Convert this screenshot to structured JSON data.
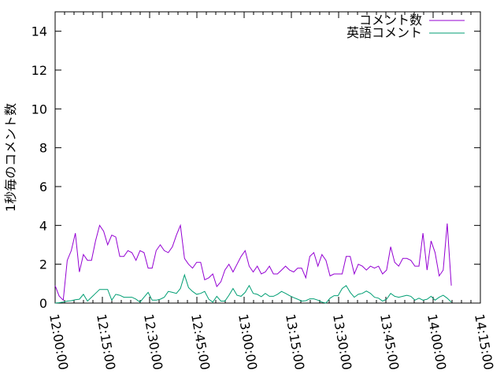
{
  "chart_data": {
    "type": "line",
    "title": "",
    "xlabel": "",
    "ylabel": "1秒毎のコメント数",
    "xlim": [
      "12:00:00",
      "14:15:00"
    ],
    "ylim": [
      0,
      15
    ],
    "x_ticks": [
      "12:00:00",
      "12:15:00",
      "12:30:00",
      "12:45:00",
      "13:00:00",
      "13:15:00",
      "13:30:00",
      "13:45:00",
      "14:00:00",
      "14:15:00"
    ],
    "y_ticks": [
      "0",
      "2",
      "4",
      "6",
      "8",
      "10",
      "12",
      "14"
    ],
    "grid": false,
    "legend_position": "top-right",
    "x_start": "12:00:00",
    "x_step_seconds": 77,
    "series": [
      {
        "name": "コメント数",
        "color": "#9400d3",
        "values": [
          0.9,
          0.36,
          0.15,
          2.2,
          2.7,
          3.6,
          1.6,
          2.5,
          2.2,
          2.2,
          3.2,
          4.0,
          3.7,
          3.0,
          3.5,
          3.4,
          2.4,
          2.4,
          2.7,
          2.6,
          2.2,
          2.7,
          2.6,
          1.8,
          1.8,
          2.7,
          3.0,
          2.7,
          2.6,
          2.9,
          3.5,
          4.0,
          2.3,
          2.0,
          1.8,
          2.1,
          2.1,
          1.2,
          1.3,
          1.5,
          0.85,
          1.1,
          1.7,
          2.0,
          1.6,
          2.0,
          2.4,
          2.7,
          1.9,
          1.6,
          1.9,
          1.5,
          1.6,
          1.9,
          1.5,
          1.5,
          1.7,
          1.9,
          1.7,
          1.6,
          1.8,
          1.8,
          1.3,
          2.4,
          2.6,
          1.9,
          2.5,
          2.2,
          1.4,
          1.5,
          1.5,
          1.5,
          2.4,
          2.4,
          1.5,
          2.0,
          1.9,
          1.7,
          1.9,
          1.8,
          1.9,
          1.5,
          1.7,
          2.9,
          2.1,
          1.9,
          2.3,
          2.3,
          2.2,
          1.9,
          1.9,
          3.6,
          1.7,
          3.2,
          2.6,
          1.4,
          1.7,
          4.1,
          0.9
        ]
      },
      {
        "name": "英語コメント",
        "color": "#009e73",
        "values": [
          0,
          0.02,
          0.05,
          0.1,
          0.12,
          0.17,
          0.2,
          0.45,
          0.1,
          0.3,
          0.5,
          0.7,
          0.7,
          0.7,
          0.15,
          0.45,
          0.4,
          0.3,
          0.3,
          0.3,
          0.2,
          0.05,
          0.3,
          0.55,
          0.15,
          0.15,
          0.2,
          0.3,
          0.6,
          0.55,
          0.5,
          0.75,
          1.45,
          0.8,
          0.6,
          0.45,
          0.5,
          0.6,
          0.2,
          0.05,
          0.35,
          0.1,
          0.1,
          0.4,
          0.75,
          0.4,
          0.35,
          0.55,
          0.9,
          0.5,
          0.45,
          0.33,
          0.5,
          0.35,
          0.35,
          0.45,
          0.6,
          0.5,
          0.38,
          0.28,
          0.2,
          0.1,
          0.12,
          0.22,
          0.22,
          0.15,
          0.05,
          0,
          0.25,
          0.38,
          0.38,
          0.75,
          0.9,
          0.55,
          0.3,
          0.45,
          0.5,
          0.62,
          0.5,
          0.3,
          0.25,
          0.1,
          0.2,
          0.5,
          0.35,
          0.3,
          0.35,
          0.4,
          0.35,
          0.15,
          0.25,
          0.15,
          0.2,
          0.35,
          0.15,
          0.3,
          0.4,
          0.25,
          0.05
        ]
      }
    ]
  }
}
